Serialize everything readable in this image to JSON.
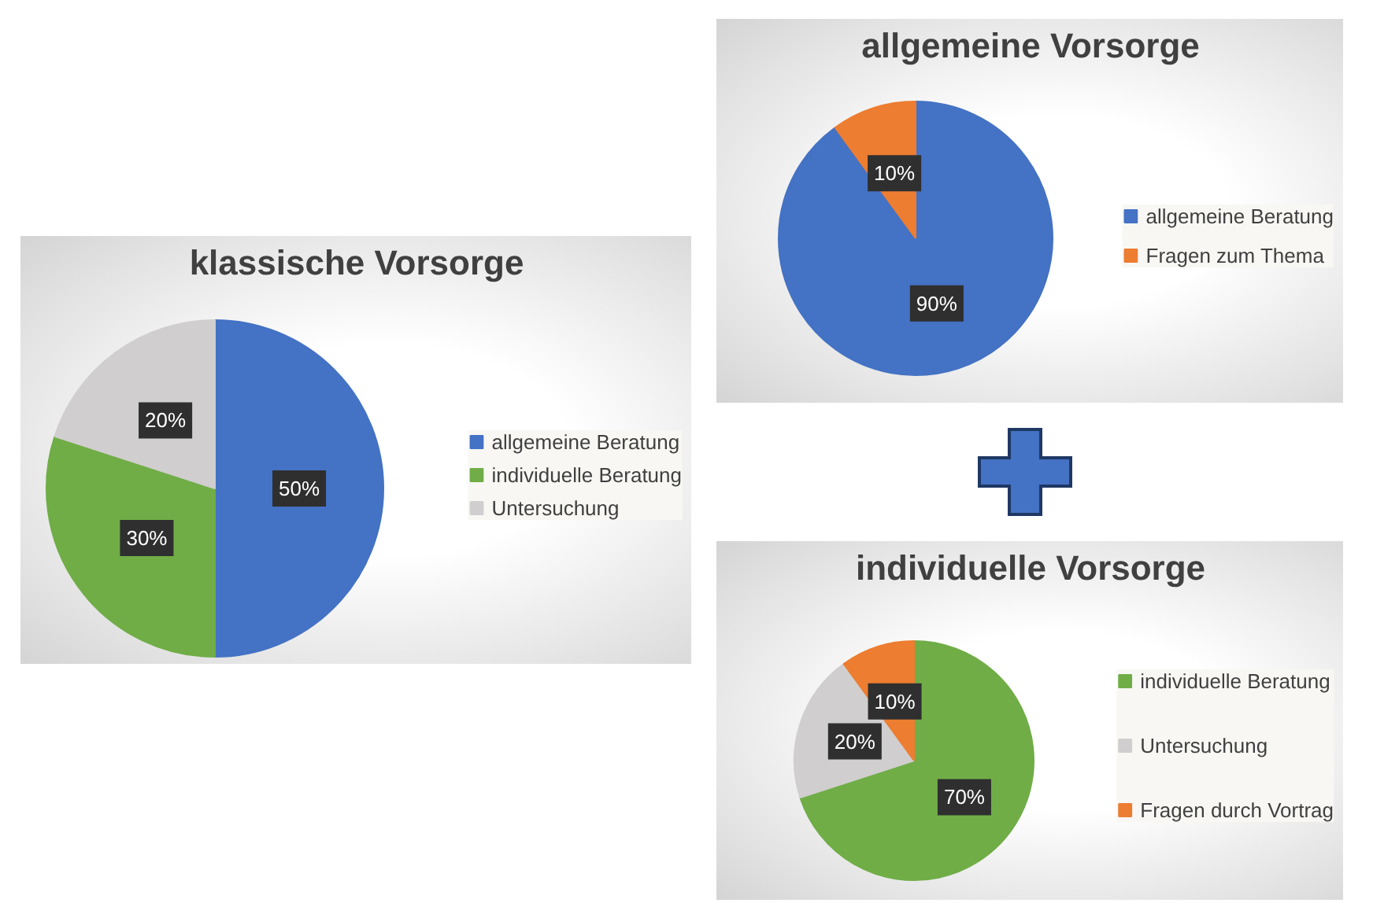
{
  "chart_data": [
    {
      "type": "pie",
      "title": "klassische Vorsorge",
      "categories": [
        "allgemeine Beratung",
        "individuelle Beratung",
        "Untersuchung"
      ],
      "values": [
        50,
        30,
        20
      ],
      "colors": [
        "#4472c4",
        "#70ad47",
        "#d0cece"
      ],
      "value_labels": [
        "50%",
        "30%",
        "20%"
      ],
      "legend": "right"
    },
    {
      "type": "pie",
      "title": "allgemeine Vorsorge",
      "categories": [
        "allgemeine Beratung",
        "Fragen zum Thema"
      ],
      "values": [
        90,
        10
      ],
      "colors": [
        "#4472c4",
        "#ed7d31"
      ],
      "value_labels": [
        "90%",
        "10%"
      ],
      "legend": "right"
    },
    {
      "type": "pie",
      "title": "individuelle Vorsorge",
      "categories": [
        "individuelle Beratung",
        "Untersuchung",
        "Fragen durch Vortrag"
      ],
      "values": [
        70,
        20,
        10
      ],
      "colors": [
        "#70ad47",
        "#d0cece",
        "#ed7d31"
      ],
      "value_labels": [
        "70%",
        "20%",
        "10%"
      ],
      "legend": "right"
    }
  ]
}
